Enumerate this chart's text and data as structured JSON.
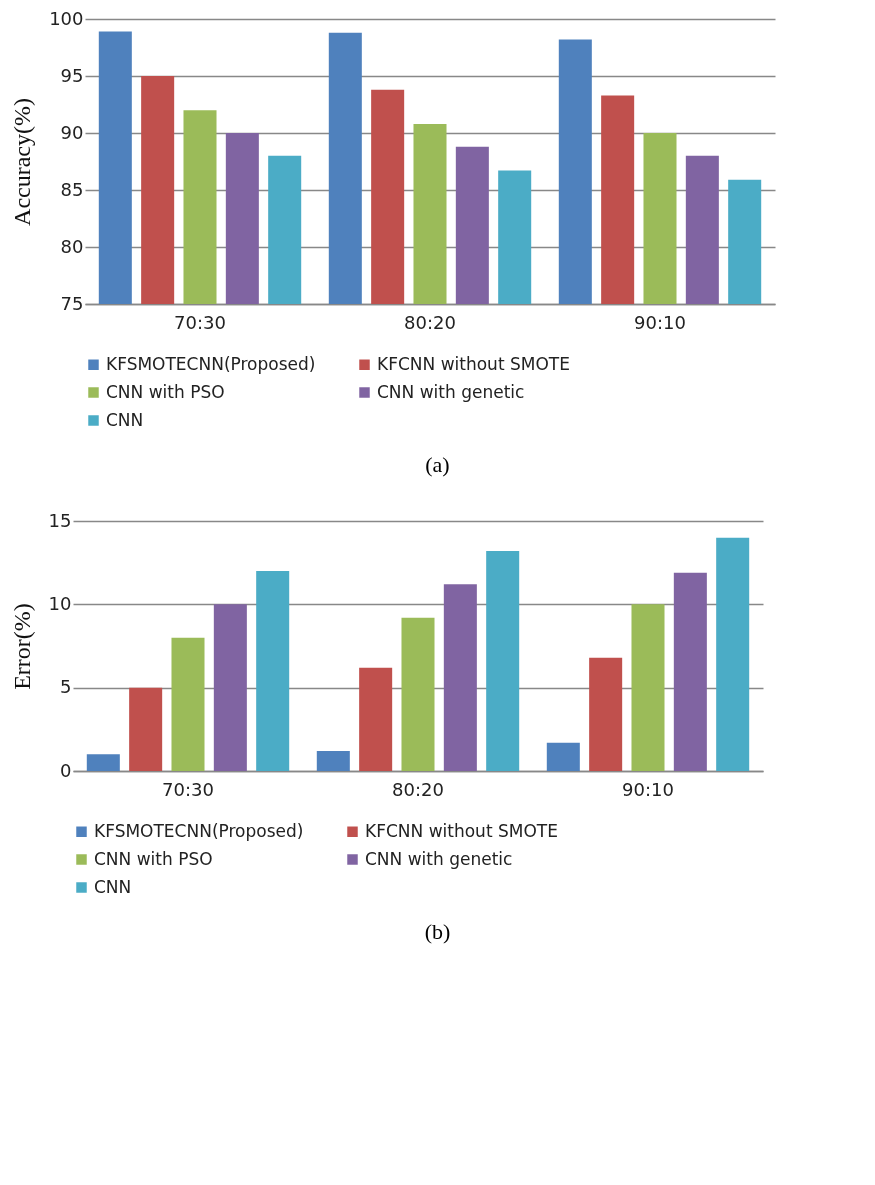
{
  "chart_data": [
    {
      "type": "bar",
      "categories": [
        "70:30",
        "80:20",
        "90:10"
      ],
      "ylabel": "Accuracy(%)",
      "ylim": [
        75,
        100
      ],
      "yticks": [
        75,
        80,
        85,
        90,
        95,
        100
      ],
      "grid": "y",
      "legend": "bottom",
      "annotations": [
        "(a)"
      ],
      "series": [
        {
          "name": "KFSMOTECNN(Proposed)",
          "color": "#4f81bd",
          "values": [
            98.9,
            98.8,
            98.2
          ]
        },
        {
          "name": "KFCNN without SMOTE",
          "color": "#c0504d",
          "values": [
            95.0,
            93.8,
            93.3
          ]
        },
        {
          "name": "CNN with PSO",
          "color": "#9bbb59",
          "values": [
            92.0,
            90.8,
            90.0
          ]
        },
        {
          "name": "CNN with genetic",
          "color": "#8064a2",
          "values": [
            90.0,
            88.8,
            88.0
          ]
        },
        {
          "name": "CNN",
          "color": "#4bacc6",
          "values": [
            88.0,
            86.7,
            85.9
          ]
        }
      ]
    },
    {
      "type": "bar",
      "categories": [
        "70:30",
        "80:20",
        "90:10"
      ],
      "ylabel": "Error(%)",
      "ylim": [
        0,
        15
      ],
      "yticks": [
        0,
        5,
        10,
        15
      ],
      "grid": "y",
      "legend": "bottom",
      "annotations": [
        "(b)"
      ],
      "series": [
        {
          "name": "KFSMOTECNN(Proposed)",
          "color": "#4f81bd",
          "values": [
            1.0,
            1.2,
            1.7
          ]
        },
        {
          "name": "KFCNN without SMOTE",
          "color": "#c0504d",
          "values": [
            5.0,
            6.2,
            6.8
          ]
        },
        {
          "name": "CNN with PSO",
          "color": "#9bbb59",
          "values": [
            8.0,
            9.2,
            10.0
          ]
        },
        {
          "name": "CNN with genetic",
          "color": "#8064a2",
          "values": [
            10.0,
            11.2,
            11.9
          ]
        },
        {
          "name": "CNN",
          "color": "#4bacc6",
          "values": [
            12.0,
            13.2,
            14.0
          ]
        }
      ]
    }
  ]
}
